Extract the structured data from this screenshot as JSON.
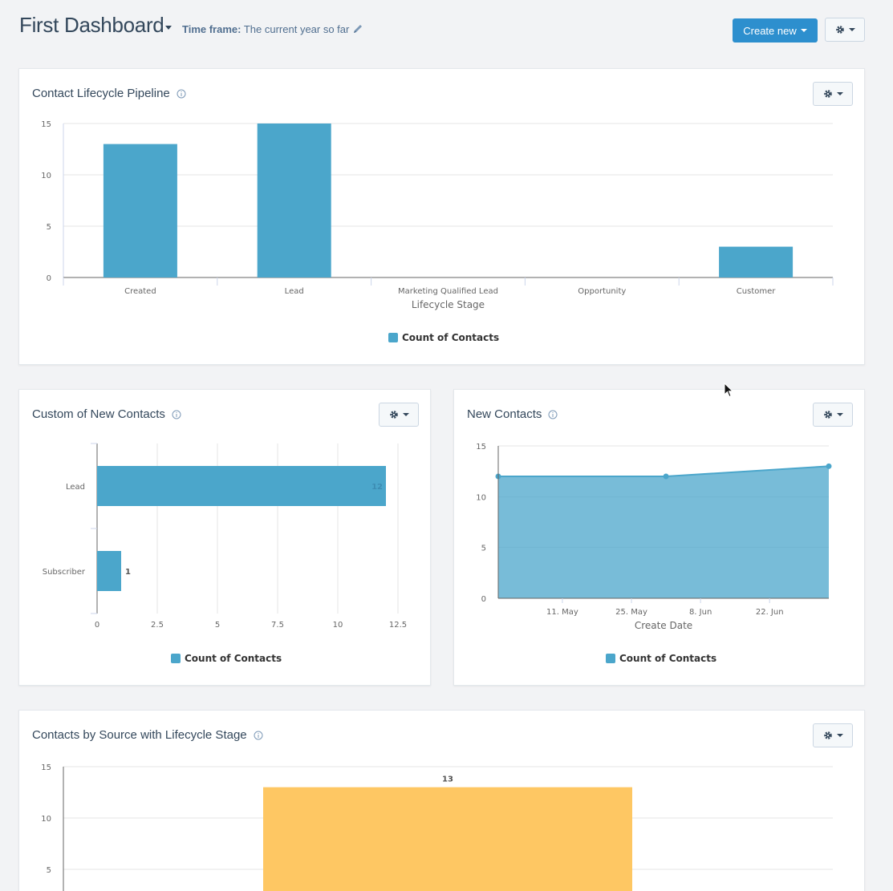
{
  "header": {
    "title": "First Dashboard",
    "timeframe_label": "Time frame:",
    "timeframe_value": "The current year so far",
    "create_new_label": "Create new"
  },
  "colors": {
    "bar_blue": "#4ba6cb",
    "bar_orange": "#fec763",
    "primary_button": "#2d8fce"
  },
  "cards": {
    "pipeline": {
      "title": "Contact Lifecycle Pipeline",
      "legend": "Count of Contacts"
    },
    "custom": {
      "title": "Custom of New Contacts",
      "legend": "Count of Contacts"
    },
    "new_contacts": {
      "title": "New Contacts",
      "legend": "Count of Contacts"
    },
    "by_source": {
      "title": "Contacts by Source with Lifecycle Stage"
    }
  },
  "chart_data": [
    {
      "id": "pipeline",
      "type": "bar",
      "categories": [
        "Created",
        "Lead",
        "Marketing Qualified Lead",
        "Opportunity",
        "Customer"
      ],
      "series": [
        {
          "name": "Count of Contacts",
          "values": [
            13,
            15,
            0,
            0,
            3
          ]
        }
      ],
      "xlabel": "Lifecycle Stage",
      "ylabel": "",
      "ylim": [
        0,
        15
      ],
      "yticks": [
        0,
        5,
        10,
        15
      ],
      "grid": true,
      "legend": "bottom-center"
    },
    {
      "id": "custom",
      "type": "bar",
      "orientation": "horizontal",
      "categories": [
        "Lead",
        "Subscriber"
      ],
      "series": [
        {
          "name": "Count of Contacts",
          "values": [
            12,
            1
          ]
        }
      ],
      "data_labels": [
        "12",
        "1"
      ],
      "xlim": [
        0,
        12.5
      ],
      "xticks": [
        "0",
        "2.5",
        "5",
        "7.5",
        "10",
        "12.5"
      ],
      "grid": true,
      "legend": "bottom-center"
    },
    {
      "id": "new_contacts",
      "type": "area",
      "x": [
        "2019-04-28",
        "2019-06-01",
        "2019-07-04"
      ],
      "series": [
        {
          "name": "Count of Contacts",
          "values": [
            12,
            12,
            13
          ]
        }
      ],
      "xticks": [
        "11. May",
        "25. May",
        "8. Jun",
        "22. Jun"
      ],
      "xlabel": "Create Date",
      "ylim": [
        0,
        15
      ],
      "yticks": [
        0,
        5,
        10,
        15
      ],
      "grid": true,
      "legend": "bottom-center"
    },
    {
      "id": "by_source",
      "type": "bar",
      "categories": [
        ""
      ],
      "series": [
        {
          "values": [
            13
          ]
        }
      ],
      "data_labels": [
        "13"
      ],
      "ylim": [
        0,
        15
      ],
      "yticks": [
        5,
        10,
        15
      ],
      "grid": true
    }
  ]
}
